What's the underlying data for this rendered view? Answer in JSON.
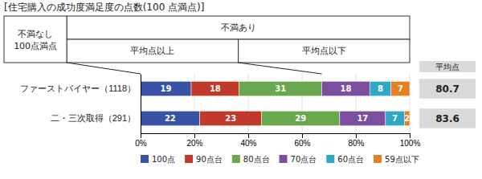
{
  "chart_data": {
    "type": "bar",
    "title": "[住宅購入の成功度満足度の点数(100 点満点)]",
    "orientation": "horizontal",
    "stacked": true,
    "data_labels": true,
    "grid": true,
    "legend": "bottom",
    "categories": [
      "ファーストバイヤー（1118）",
      "二・三次取得（291）"
    ],
    "series": [
      {
        "name": "100点",
        "color": "#3953A4",
        "values": [
          18.81188118811881,
          22
        ],
        "value_labels": [
          "19",
          "22"
        ]
      },
      {
        "name": "90点台",
        "color": "#C0392B",
        "values": [
          17.82178217821782,
          23
        ],
        "value_labels": [
          "18",
          "23"
        ]
      },
      {
        "name": "80点台",
        "color": "#6AA84F",
        "values": [
          30.693069306930692,
          29
        ],
        "value_labels": [
          "31",
          "29"
        ]
      },
      {
        "name": "70点台",
        "color": "#7B4EA0",
        "values": [
          17.82178217821782,
          17
        ],
        "value_labels": [
          "18",
          "17"
        ]
      },
      {
        "name": "60点台",
        "color": "#2FA8C8",
        "values": [
          7.920792079207921,
          7
        ],
        "value_labels": [
          "8",
          "7"
        ]
      },
      {
        "name": "59点以下",
        "color": "#E67E22",
        "values": [
          6.930693069306931,
          2
        ],
        "value_labels": [
          "7",
          "2"
        ]
      }
    ],
    "xlim": [
      0,
      100
    ],
    "xticks": [
      {
        "value": 0,
        "label": "0%"
      },
      {
        "value": 20,
        "label": "20%"
      },
      {
        "value": 40,
        "label": "40%"
      },
      {
        "value": 60,
        "label": "60%"
      },
      {
        "value": 80,
        "label": "80%"
      },
      {
        "value": 100,
        "label": "100%"
      }
    ],
    "annotations": [
      "不満なし",
      "100点満点",
      "不満あり",
      "平均点以上",
      "平均点以下"
    ],
    "averages": {
      "label": "平均点",
      "values": [
        80.7,
        83.6
      ]
    }
  }
}
